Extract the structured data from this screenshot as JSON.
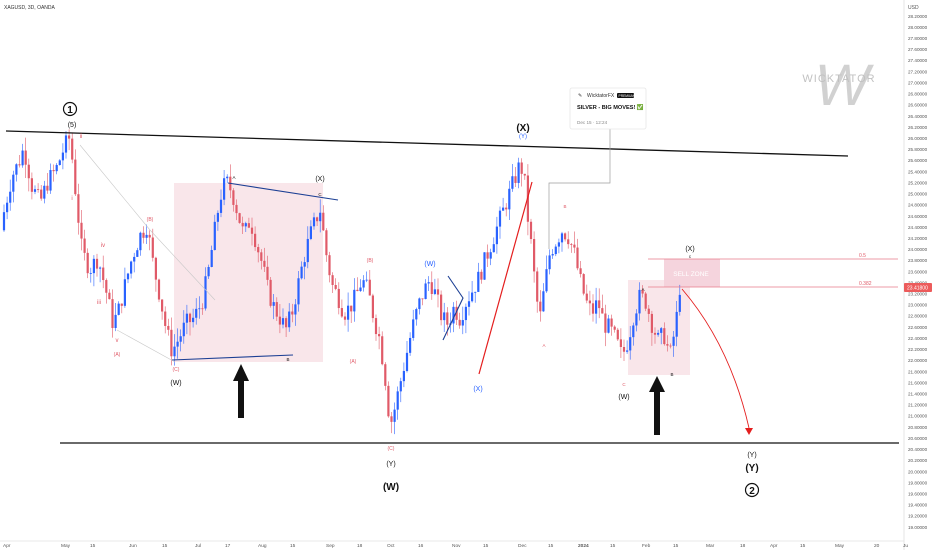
{
  "header": {
    "symbol": "XAGUSD, 3D, OANDA"
  },
  "price_axis": {
    "currency": "USD",
    "labels": [
      "28.20000",
      "28.00000",
      "27.80000",
      "27.60000",
      "27.40000",
      "27.20000",
      "27.00000",
      "26.80000",
      "26.60000",
      "26.40000",
      "26.20000",
      "26.00000",
      "25.80000",
      "25.60000",
      "25.40000",
      "25.20000",
      "25.00000",
      "24.80000",
      "24.60000",
      "24.40000",
      "24.20000",
      "24.00000",
      "23.80000",
      "23.60000",
      "23.40000",
      "23.20000",
      "23.00000",
      "22.80000",
      "22.60000",
      "22.40000",
      "22.20000",
      "22.00000",
      "21.80000",
      "21.60000",
      "21.40000",
      "21.20000",
      "21.00000",
      "20.80000",
      "20.60000",
      "20.40000",
      "20.20000",
      "20.00000",
      "19.80000",
      "19.60000",
      "19.40000",
      "19.20000",
      "19.00000"
    ],
    "current_price": "23.41800",
    "current_color": "#ec5b5b"
  },
  "time_axis": {
    "labels": [
      "Apr",
      "May",
      "15",
      "Jun",
      "15",
      "Jul",
      "17",
      "Aug",
      "15",
      "Sep",
      "18",
      "Oct",
      "16",
      "Nov",
      "15",
      "Dec",
      "15",
      "2024",
      "15",
      "Feb",
      "15",
      "Mar",
      "18",
      "Apr",
      "15",
      "May",
      "20",
      "Ju"
    ],
    "bold": [
      "2024"
    ]
  },
  "colors": {
    "up": "#2962ff",
    "down": "#e05a68",
    "black_line": "#111111",
    "blue_line": "#1c3f94",
    "red_line": "#e41e1e",
    "box_fill": "#f7dde3",
    "sell_zone_fill": "#f4cfd9",
    "guide": "#9e9e9e"
  },
  "labels": {
    "circle1": "1",
    "wave_5": "(5)",
    "x_primary": "(X)",
    "x_primary_sub": "(Y)",
    "w_primary": "(W)",
    "y_primary": "(Y)",
    "circle2": "2",
    "x_sub": "(X)",
    "c_sub": "c",
    "x_sub2": "(X)",
    "w_left": "(W)",
    "w_blue": "(W)",
    "x_blue": "(X)",
    "y_black": "(Y)",
    "w_right": "(W)",
    "y_right": "(Y)",
    "roman_i": "i",
    "roman_ii": "ii",
    "roman_iii": "iii",
    "roman_iv": "iv",
    "roman_v": "v",
    "a_left": "(A)",
    "b_left": "(B)",
    "c_left": "(C)",
    "a_mid": "(A)",
    "b_mid": "(B)",
    "c_mid": "(C)",
    "box_a": "A",
    "box_b": "B",
    "box_c": "C",
    "red_b": "B",
    "red_a": "A",
    "red_c": "C",
    "right_a": "A",
    "right_b": "B",
    "sell_zone": "SELL ZONE",
    "fib_05": "0.5",
    "fib_0382": "0.382"
  },
  "popup": {
    "author": "WicktatorFX",
    "badge": "PREMIUM",
    "title": "SILVER - BIG MOVES! ✅",
    "date": "Dec 15 · 12:24"
  },
  "watermark": {
    "text": "WICKTATOR"
  },
  "chart_data": {
    "type": "candlestick",
    "symbol": "XAGUSD",
    "interval": "3D",
    "source": "OANDA",
    "y_range": [
      19.0,
      28.3
    ],
    "price_levels": {
      "current": 23.418,
      "fib_0_5": 23.9,
      "fib_0_382": 23.42
    },
    "key_points": [
      {
        "label": "(1) / (5) top",
        "time": "May 2023",
        "price": 26.1
      },
      {
        "label": "(C) / (W) low",
        "time": "Jun 2023",
        "price": 22.15
      },
      {
        "label": "(X) high",
        "time": "late Aug 2023",
        "price": 25.0
      },
      {
        "label": "(C) / (Y) / (W) low",
        "time": "early Oct 2023",
        "price": 20.7
      },
      {
        "label": "(X) / (Y) high",
        "time": "Dec 2023",
        "price": 25.9
      },
      {
        "label": "(W) low",
        "time": "Feb 2024",
        "price": 22.0
      },
      {
        "label": "(X) current",
        "time": "late Feb 2024",
        "price": 23.42
      },
      {
        "label": "projected (Y) / 2",
        "time": "Apr 2024",
        "price": 20.8
      }
    ]
  }
}
